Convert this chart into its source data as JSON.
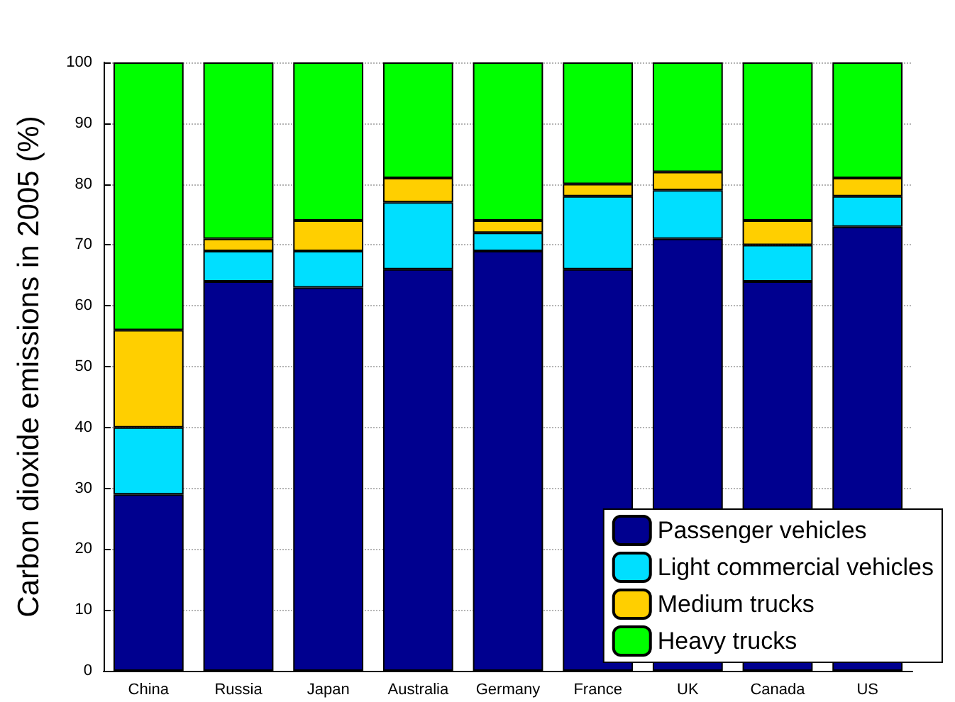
{
  "chart_data": {
    "type": "bar",
    "stacked": true,
    "ylabel": "Carbon dioxide emissions in 2005 (%)",
    "categories": [
      "China",
      "Russia",
      "Japan",
      "Australia",
      "Germany",
      "France",
      "UK",
      "Canada",
      "US"
    ],
    "series": [
      {
        "name": "Passenger vehicles",
        "color": "#00008f",
        "values": [
          29,
          64,
          63,
          66,
          69,
          66,
          71,
          64,
          73
        ]
      },
      {
        "name": "Light commercial vehicles",
        "color": "#00dfff",
        "values": [
          11,
          5,
          6,
          11,
          3,
          12,
          8,
          6,
          5
        ]
      },
      {
        "name": "Medium trucks",
        "color": "#ffcf00",
        "values": [
          16,
          2,
          5,
          4,
          2,
          2,
          3,
          4,
          3
        ]
      },
      {
        "name": "Heavy trucks",
        "color": "#00ff00",
        "values": [
          44,
          29,
          26,
          19,
          26,
          20,
          18,
          26,
          19
        ]
      }
    ],
    "ylim": [
      0,
      100
    ],
    "yticks": [
      0,
      10,
      20,
      30,
      40,
      50,
      60,
      70,
      80,
      90,
      100
    ],
    "grid": "y",
    "legend": "bottom right"
  }
}
